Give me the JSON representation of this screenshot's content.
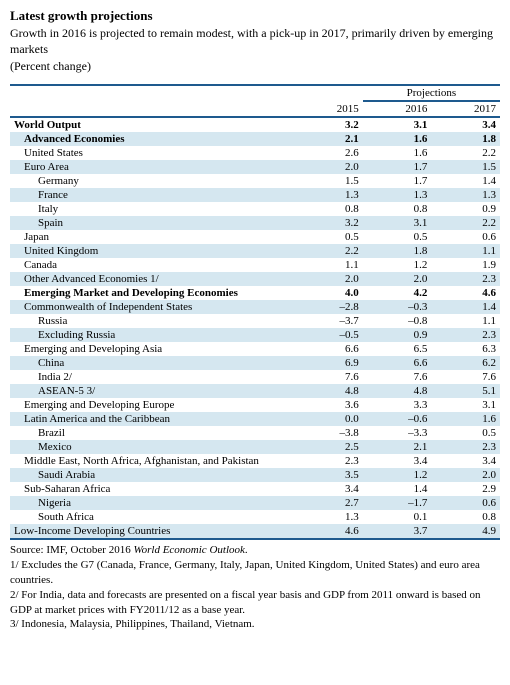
{
  "header": {
    "title": "Latest growth projections",
    "subtitle": "Growth in 2016 is projected to remain modest, with a pick-up in 2017, primarily driven by emerging markets",
    "unit": "(Percent change)"
  },
  "table": {
    "projections_label": "Projections",
    "years": [
      "2015",
      "2016",
      "2017"
    ],
    "border_color": "#1e5a8e",
    "row_stripe_color": "#d5e7f0",
    "background_color": "#ffffff",
    "font_family": "Georgia",
    "font_size_pt": 11,
    "rows": [
      {
        "label": "World Output",
        "values": [
          "3.2",
          "3.1",
          "3.4"
        ],
        "indent": 0,
        "bold": true
      },
      {
        "label": "Advanced Economies",
        "values": [
          "2.1",
          "1.6",
          "1.8"
        ],
        "indent": 1,
        "bold": true
      },
      {
        "label": "United States",
        "values": [
          "2.6",
          "1.6",
          "2.2"
        ],
        "indent": 1,
        "bold": false
      },
      {
        "label": "Euro Area",
        "values": [
          "2.0",
          "1.7",
          "1.5"
        ],
        "indent": 1,
        "bold": false
      },
      {
        "label": "Germany",
        "values": [
          "1.5",
          "1.7",
          "1.4"
        ],
        "indent": 2,
        "bold": false
      },
      {
        "label": "France",
        "values": [
          "1.3",
          "1.3",
          "1.3"
        ],
        "indent": 2,
        "bold": false
      },
      {
        "label": "Italy",
        "values": [
          "0.8",
          "0.8",
          "0.9"
        ],
        "indent": 2,
        "bold": false
      },
      {
        "label": "Spain",
        "values": [
          "3.2",
          "3.1",
          "2.2"
        ],
        "indent": 2,
        "bold": false
      },
      {
        "label": "Japan",
        "values": [
          "0.5",
          "0.5",
          "0.6"
        ],
        "indent": 1,
        "bold": false
      },
      {
        "label": "United Kingdom",
        "values": [
          "2.2",
          "1.8",
          "1.1"
        ],
        "indent": 1,
        "bold": false
      },
      {
        "label": "Canada",
        "values": [
          "1.1",
          "1.2",
          "1.9"
        ],
        "indent": 1,
        "bold": false
      },
      {
        "label": "Other Advanced Economies 1/",
        "values": [
          "2.0",
          "2.0",
          "2.3"
        ],
        "indent": 1,
        "bold": false
      },
      {
        "label": "Emerging Market and Developing Economies",
        "values": [
          "4.0",
          "4.2",
          "4.6"
        ],
        "indent": 1,
        "bold": true
      },
      {
        "label": "Commonwealth of Independent States",
        "values": [
          "–2.8",
          "–0.3",
          "1.4"
        ],
        "indent": 1,
        "bold": false
      },
      {
        "label": "Russia",
        "values": [
          "–3.7",
          "–0.8",
          "1.1"
        ],
        "indent": 2,
        "bold": false
      },
      {
        "label": "Excluding Russia",
        "values": [
          "–0.5",
          "0.9",
          "2.3"
        ],
        "indent": 2,
        "bold": false
      },
      {
        "label": "Emerging and Developing Asia",
        "values": [
          "6.6",
          "6.5",
          "6.3"
        ],
        "indent": 1,
        "bold": false
      },
      {
        "label": "China",
        "values": [
          "6.9",
          "6.6",
          "6.2"
        ],
        "indent": 2,
        "bold": false
      },
      {
        "label": "India 2/",
        "values": [
          "7.6",
          "7.6",
          "7.6"
        ],
        "indent": 2,
        "bold": false
      },
      {
        "label": "ASEAN-5 3/",
        "values": [
          "4.8",
          "4.8",
          "5.1"
        ],
        "indent": 2,
        "bold": false
      },
      {
        "label": "Emerging and Developing Europe",
        "values": [
          "3.6",
          "3.3",
          "3.1"
        ],
        "indent": 1,
        "bold": false
      },
      {
        "label": "Latin America and the Caribbean",
        "values": [
          "0.0",
          "–0.6",
          "1.6"
        ],
        "indent": 1,
        "bold": false
      },
      {
        "label": "Brazil",
        "values": [
          "–3.8",
          "–3.3",
          "0.5"
        ],
        "indent": 2,
        "bold": false
      },
      {
        "label": "Mexico",
        "values": [
          "2.5",
          "2.1",
          "2.3"
        ],
        "indent": 2,
        "bold": false
      },
      {
        "label": "Middle East, North Africa, Afghanistan, and Pakistan",
        "values": [
          "2.3",
          "3.4",
          "3.4"
        ],
        "indent": 1,
        "bold": false
      },
      {
        "label": "Saudi Arabia",
        "values": [
          "3.5",
          "1.2",
          "2.0"
        ],
        "indent": 2,
        "bold": false
      },
      {
        "label": "Sub-Saharan Africa",
        "values": [
          "3.4",
          "1.4",
          "2.9"
        ],
        "indent": 1,
        "bold": false
      },
      {
        "label": "Nigeria",
        "values": [
          "2.7",
          "–1.7",
          "0.6"
        ],
        "indent": 2,
        "bold": false
      },
      {
        "label": "South Africa",
        "values": [
          "1.3",
          "0.1",
          "0.8"
        ],
        "indent": 2,
        "bold": false
      },
      {
        "label": "Low-Income Developing Countries",
        "values": [
          "4.6",
          "3.7",
          "4.9"
        ],
        "indent": 0,
        "bold": false
      }
    ]
  },
  "footer": {
    "source_prefix": "Source: IMF, October 2016 ",
    "source_italic": "World Economic Outlook",
    "source_suffix": ".",
    "note1": "1/  Excludes the G7 (Canada, France, Germany, Italy, Japan, United Kingdom, United States) and euro area countries.",
    "note2": "2/ For India, data and forecasts are presented on a fiscal year basis and GDP from 2011 onward is based on GDP at market prices with FY2011/12 as a base year.",
    "note3": "3/ Indonesia, Malaysia, Philippines, Thailand,  Vietnam."
  }
}
